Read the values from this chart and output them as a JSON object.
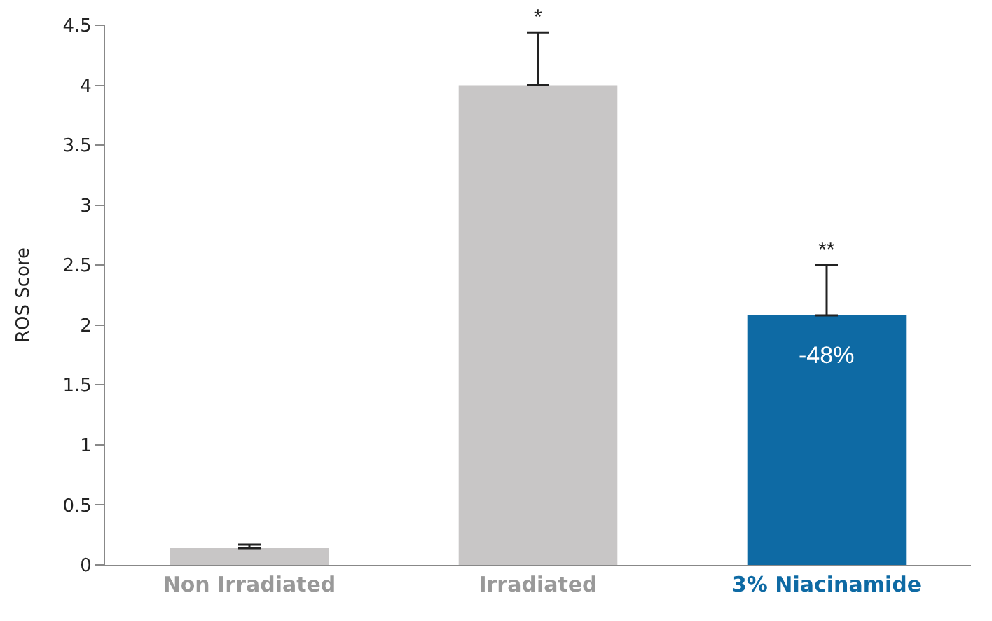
{
  "chart_data": {
    "type": "bar",
    "ylabel": "ROS Score",
    "categories": [
      "Non Irradiated",
      "Irradiated",
      "3% Niacinamide"
    ],
    "values": [
      0.14,
      4.0,
      2.08
    ],
    "colors": [
      "#c8c6c6",
      "#c8c6c6",
      "#0e6aa4"
    ],
    "errors": [
      [
        0.14,
        0.17
      ],
      [
        4.0,
        4.44
      ],
      [
        2.08,
        2.5
      ]
    ],
    "ylim": [
      0,
      4.5
    ],
    "yticks": [
      0,
      0.5,
      1,
      1.5,
      2,
      2.5,
      3,
      3.5,
      4,
      4.5
    ],
    "grid": false,
    "annotations": [
      "*",
      "**",
      "-48%"
    ]
  }
}
